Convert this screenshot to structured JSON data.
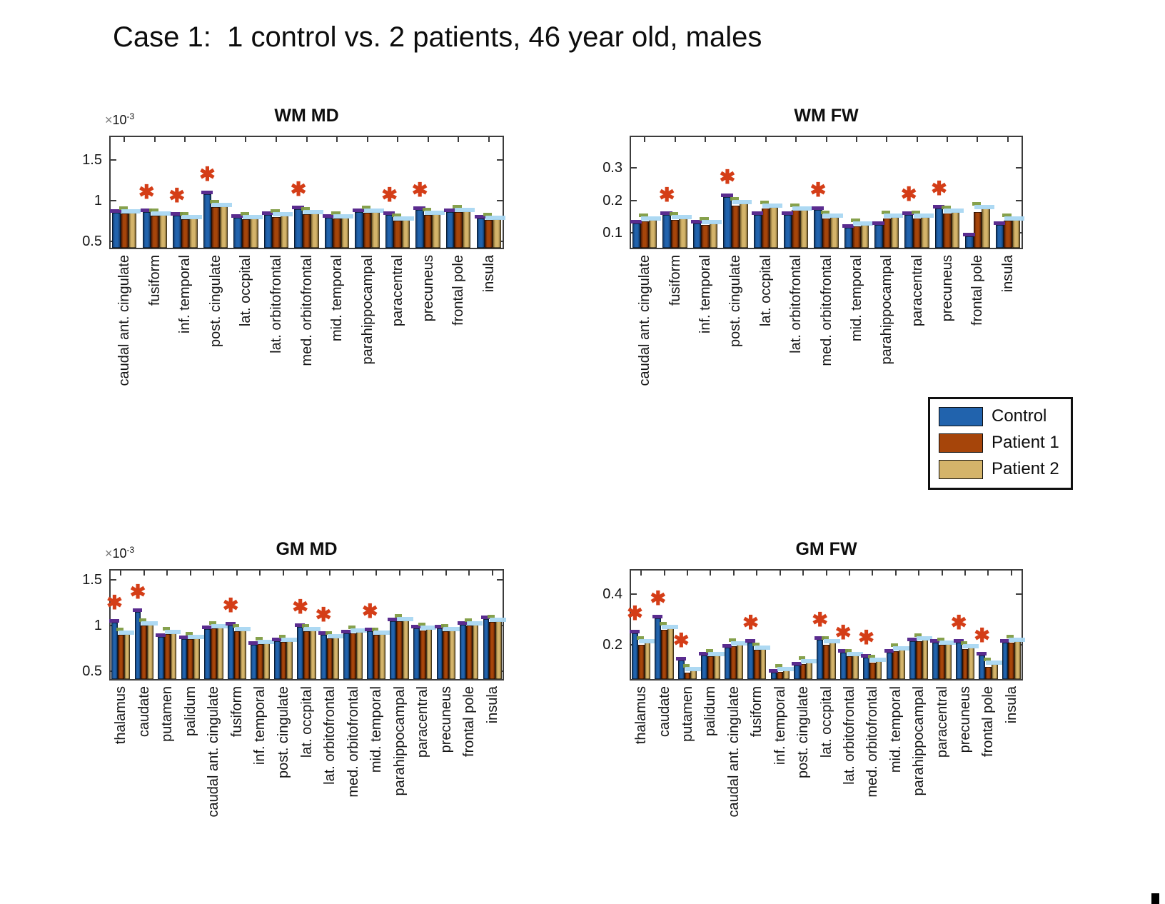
{
  "page": {
    "title": "Case 1:  1 control vs. 2 patients, 46 year old, males"
  },
  "legend": {
    "position": "outside-right-center",
    "items": [
      {
        "label": "Control",
        "color": "#2163ad"
      },
      {
        "label": "Patient 1",
        "color": "#a6450a"
      },
      {
        "label": "Patient 2",
        "color": "#d4b46a"
      }
    ]
  },
  "style": {
    "series_colors": [
      "#2163ad",
      "#a6450a",
      "#d4b46a"
    ],
    "series_edge_colors": [
      "#123a6b",
      "#571f04",
      "#7a6330"
    ],
    "overlay_cap_purple": "#5a2c8f",
    "overlay_cap_lightblue": "#a9d7f2",
    "overlay_cap_green": "#7f9c42",
    "star_color": "#d43d17",
    "axis_color": "#3c3c3c"
  },
  "chart_data": [
    {
      "type": "bar",
      "title": "WM MD",
      "exponent_times": "×",
      "exponent_base": "10",
      "exponent_power": "-3",
      "ylim": [
        0.4,
        1.8
      ],
      "yticks": [
        0.5,
        1,
        1.5
      ],
      "ytick_labels": [
        "0.5",
        "1",
        "1.5"
      ],
      "grid": false,
      "categories": [
        "caudal ant. cingulate",
        "fusiform",
        "inf. temporal",
        "post. cingulate",
        "lat. occpital",
        "lat. orbitofrontal",
        "med. orbitofrontal",
        "mid. temporal",
        "parahippocampal",
        "paracentral",
        "precuneus",
        "frontal pole",
        "insula"
      ],
      "series": [
        {
          "name": "Control",
          "values": [
            0.85,
            0.86,
            0.81,
            1.08,
            0.79,
            0.82,
            0.89,
            0.79,
            0.86,
            0.82,
            0.88,
            0.86,
            0.78
          ]
        },
        {
          "name": "Patient 1",
          "values": [
            0.84,
            0.81,
            0.77,
            0.92,
            0.77,
            0.8,
            0.83,
            0.78,
            0.85,
            0.75,
            0.82,
            0.86,
            0.76
          ]
        },
        {
          "name": "Patient 2",
          "values": [
            0.85,
            0.82,
            0.78,
            0.93,
            0.78,
            0.81,
            0.84,
            0.79,
            0.86,
            0.76,
            0.83,
            0.87,
            0.77
          ]
        }
      ],
      "significant_indices": [
        1,
        2,
        3,
        6,
        9,
        10
      ],
      "significant_categories": [
        "fusiform",
        "inf. temporal",
        "post. cingulate",
        "med. orbitofrontal",
        "paracentral",
        "precuneus"
      ]
    },
    {
      "type": "bar",
      "title": "WM FW",
      "ylim": [
        0.05,
        0.4
      ],
      "yticks": [
        0.1,
        0.2,
        0.3
      ],
      "ytick_labels": [
        "0.1",
        "0.2",
        "0.3"
      ],
      "grid": false,
      "categories": [
        "caudal ant. cingulate",
        "fusiform",
        "inf. temporal",
        "post. cingulate",
        "lat. occpital",
        "lat. orbitofrontal",
        "med. orbitofrontal",
        "mid. temporal",
        "parahippocampal",
        "paracentral",
        "precuneus",
        "frontal pole",
        "insula"
      ],
      "series": [
        {
          "name": "Control",
          "values": [
            0.13,
            0.155,
            0.13,
            0.21,
            0.155,
            0.155,
            0.17,
            0.115,
            0.125,
            0.155,
            0.175,
            0.09,
            0.125
          ]
        },
        {
          "name": "Patient 1",
          "values": [
            0.135,
            0.14,
            0.125,
            0.185,
            0.175,
            0.17,
            0.145,
            0.12,
            0.145,
            0.145,
            0.16,
            0.165,
            0.138
          ]
        },
        {
          "name": "Patient 2",
          "values": [
            0.14,
            0.145,
            0.13,
            0.19,
            0.18,
            0.172,
            0.15,
            0.125,
            0.15,
            0.15,
            0.165,
            0.175,
            0.14
          ]
        }
      ],
      "significant_indices": [
        1,
        3,
        6,
        9,
        10
      ],
      "significant_categories": [
        "fusiform",
        "post. cingulate",
        "med. orbitofrontal",
        "paracentral",
        "precuneus"
      ]
    },
    {
      "type": "bar",
      "title": "GM MD",
      "exponent_times": "×",
      "exponent_base": "10",
      "exponent_power": "-3",
      "ylim": [
        0.4,
        1.62
      ],
      "yticks": [
        0.5,
        1,
        1.5
      ],
      "ytick_labels": [
        "0.5",
        "1",
        "1.5"
      ],
      "grid": false,
      "categories": [
        "thalamus",
        "caudate",
        "putamen",
        "palidum",
        "caudal ant. cingulate",
        "fusiform",
        "inf. temporal",
        "post. cingulate",
        "lat. occpital",
        "lat. orbitofrontal",
        "med. orbitofrontal",
        "mid. temporal",
        "parahippocampal",
        "paracentral",
        "precuneus",
        "frontal pole",
        "insula"
      ],
      "series": [
        {
          "name": "Control",
          "values": [
            1.03,
            1.15,
            0.88,
            0.85,
            0.96,
            1.0,
            0.79,
            0.83,
            0.99,
            0.9,
            0.92,
            0.94,
            1.05,
            0.97,
            0.97,
            1.01,
            1.07
          ]
        },
        {
          "name": "Patient 1",
          "values": [
            0.9,
            1.0,
            0.91,
            0.85,
            0.97,
            0.94,
            0.8,
            0.82,
            0.94,
            0.86,
            0.92,
            0.9,
            1.05,
            0.95,
            0.94,
            1.0,
            1.04
          ]
        },
        {
          "name": "Patient 2",
          "values": [
            0.91,
            1.01,
            0.92,
            0.86,
            0.98,
            0.95,
            0.81,
            0.83,
            0.95,
            0.87,
            0.93,
            0.91,
            1.06,
            0.96,
            0.95,
            1.01,
            1.05
          ]
        }
      ],
      "significant_indices": [
        0,
        1,
        5,
        8,
        9,
        11
      ],
      "significant_categories": [
        "thalamus",
        "caudate",
        "fusiform",
        "lat. occpital",
        "lat. orbitofrontal",
        "mid. temporal"
      ]
    },
    {
      "type": "bar",
      "title": "GM FW",
      "ylim": [
        0.06,
        0.5
      ],
      "yticks": [
        0.2,
        0.4
      ],
      "ytick_labels": [
        "0.2",
        "0.4"
      ],
      "grid": false,
      "categories": [
        "thalamus",
        "caudate",
        "putamen",
        "palidum",
        "caudal ant. cingulate",
        "fusiform",
        "inf. temporal",
        "post. cingulate",
        "lat. occpital",
        "lat. orbitofrontal",
        "med. orbitofrontal",
        "mid. temporal",
        "parahippocampal",
        "paracentral",
        "precuneus",
        "frontal pole",
        "insula"
      ],
      "series": [
        {
          "name": "Control",
          "values": [
            0.245,
            0.305,
            0.14,
            0.16,
            0.19,
            0.21,
            0.09,
            0.12,
            0.22,
            0.17,
            0.15,
            0.17,
            0.215,
            0.21,
            0.21,
            0.16,
            0.21
          ]
        },
        {
          "name": "Patient 1",
          "values": [
            0.2,
            0.26,
            0.09,
            0.155,
            0.195,
            0.18,
            0.095,
            0.125,
            0.2,
            0.155,
            0.13,
            0.175,
            0.215,
            0.2,
            0.185,
            0.115,
            0.21
          ]
        },
        {
          "name": "Patient 2",
          "values": [
            0.21,
            0.265,
            0.1,
            0.16,
            0.2,
            0.185,
            0.1,
            0.13,
            0.21,
            0.16,
            0.135,
            0.18,
            0.22,
            0.205,
            0.19,
            0.125,
            0.215
          ]
        }
      ],
      "significant_indices": [
        0,
        1,
        2,
        5,
        8,
        9,
        10,
        14,
        15
      ],
      "significant_categories": [
        "thalamus",
        "caudate",
        "putamen",
        "fusiform",
        "lat. occpital",
        "lat. orbitofrontal",
        "med. orbitofrontal",
        "precuneus",
        "frontal pole"
      ]
    }
  ]
}
